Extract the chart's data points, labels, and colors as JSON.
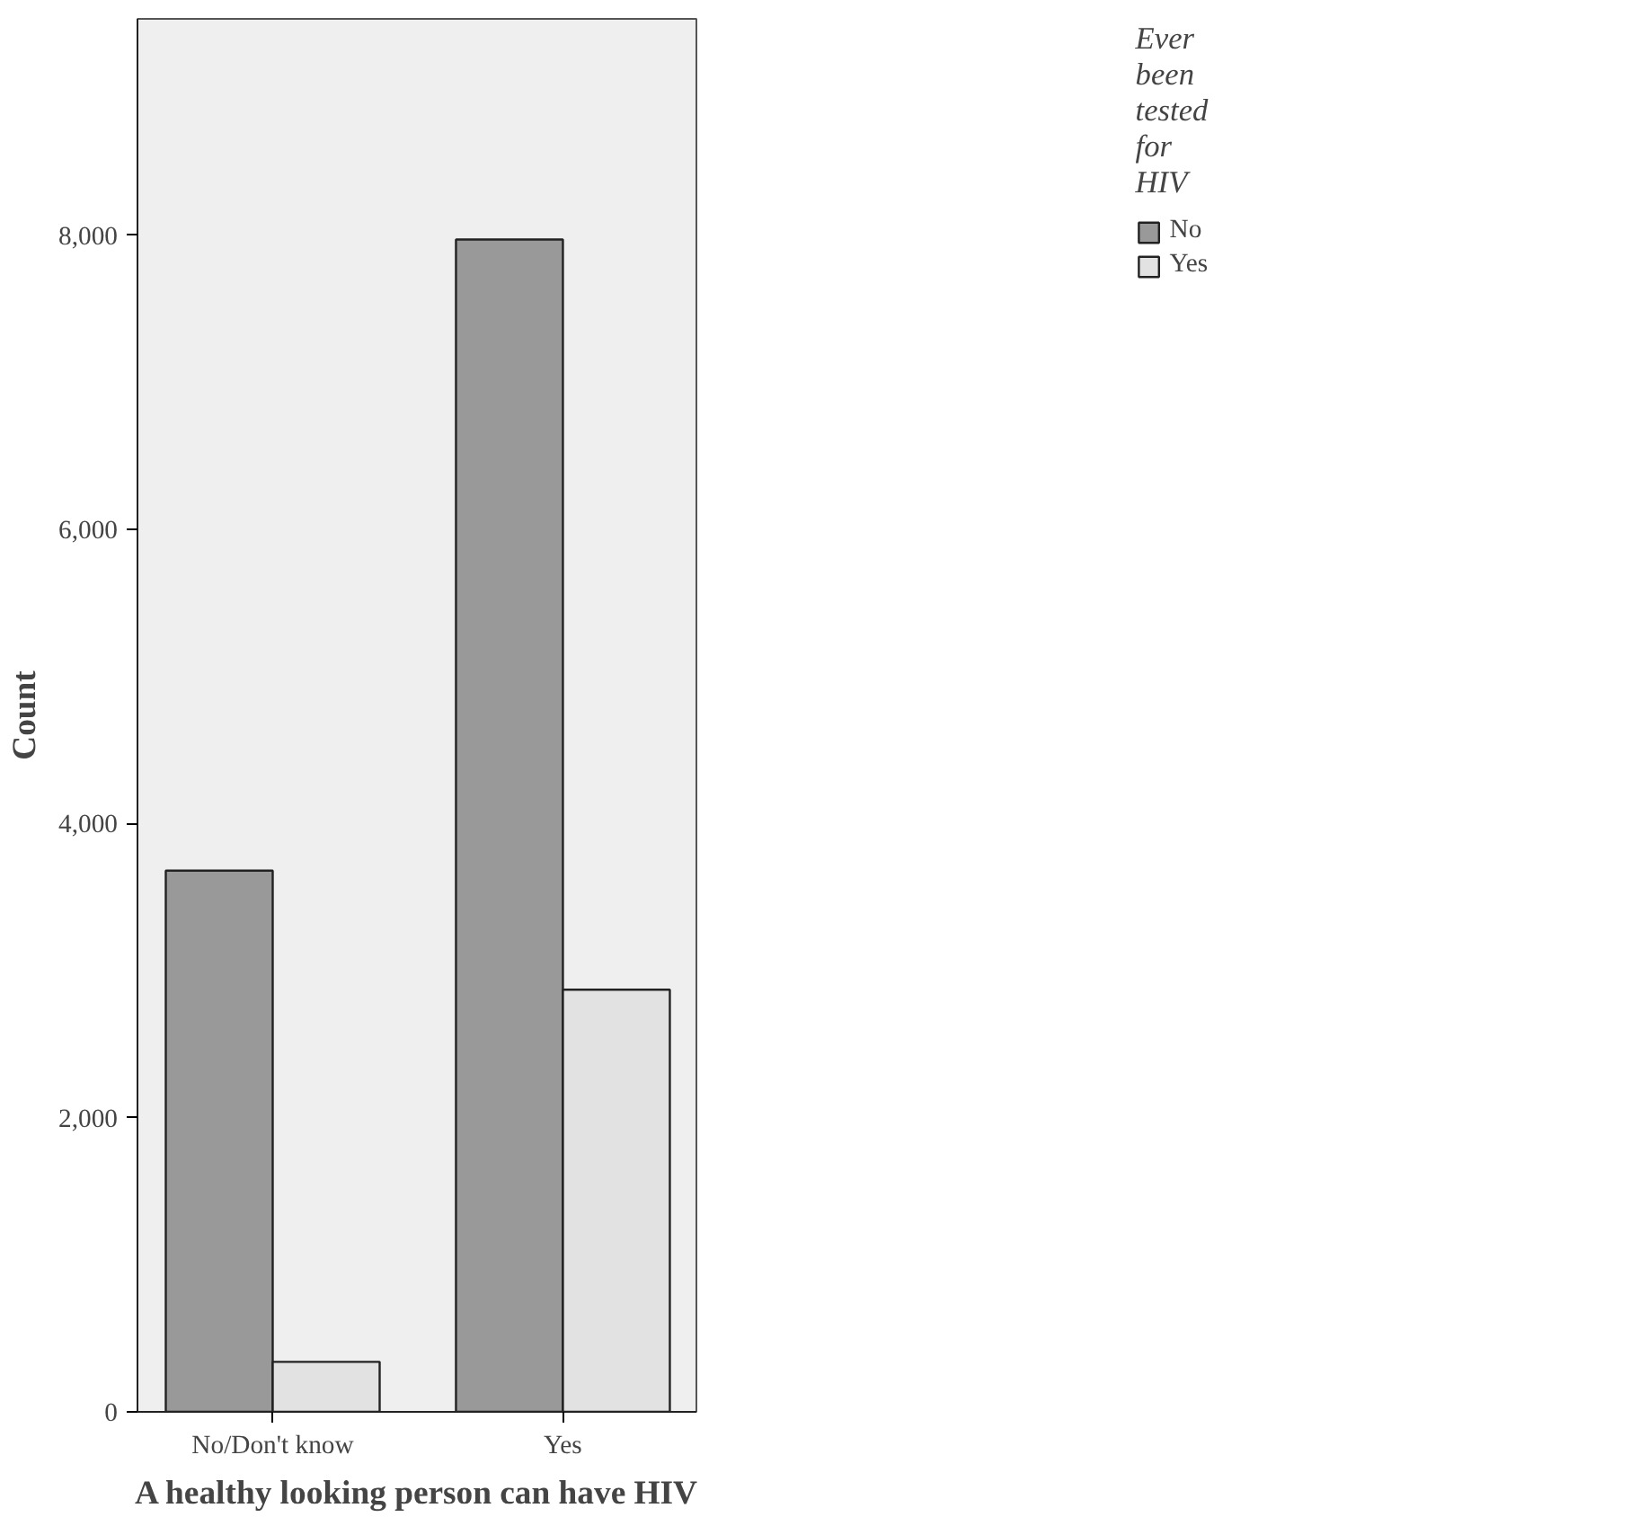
{
  "chart_data": {
    "type": "bar",
    "xlabel": "A healthy looking person can have HIV",
    "ylabel": "Count",
    "legend_title": "Ever been tested for HIV",
    "categories": [
      "No/Don't know",
      "Yes"
    ],
    "series": [
      {
        "name": "No",
        "color": "#999999",
        "values": [
          3680,
          7970
        ]
      },
      {
        "name": "Yes",
        "color": "#e2e2e2",
        "values": [
          340,
          2870
        ]
      }
    ],
    "ylim": [
      0,
      9470
    ],
    "yticks": [
      0,
      {
        "value": 2000,
        "label": "2,000"
      },
      {
        "value": 4000,
        "label": "4,000"
      },
      {
        "value": 6000,
        "label": "6,000"
      },
      {
        "value": 8000,
        "label": "8,000"
      }
    ],
    "grid": false,
    "legend": "top right"
  }
}
